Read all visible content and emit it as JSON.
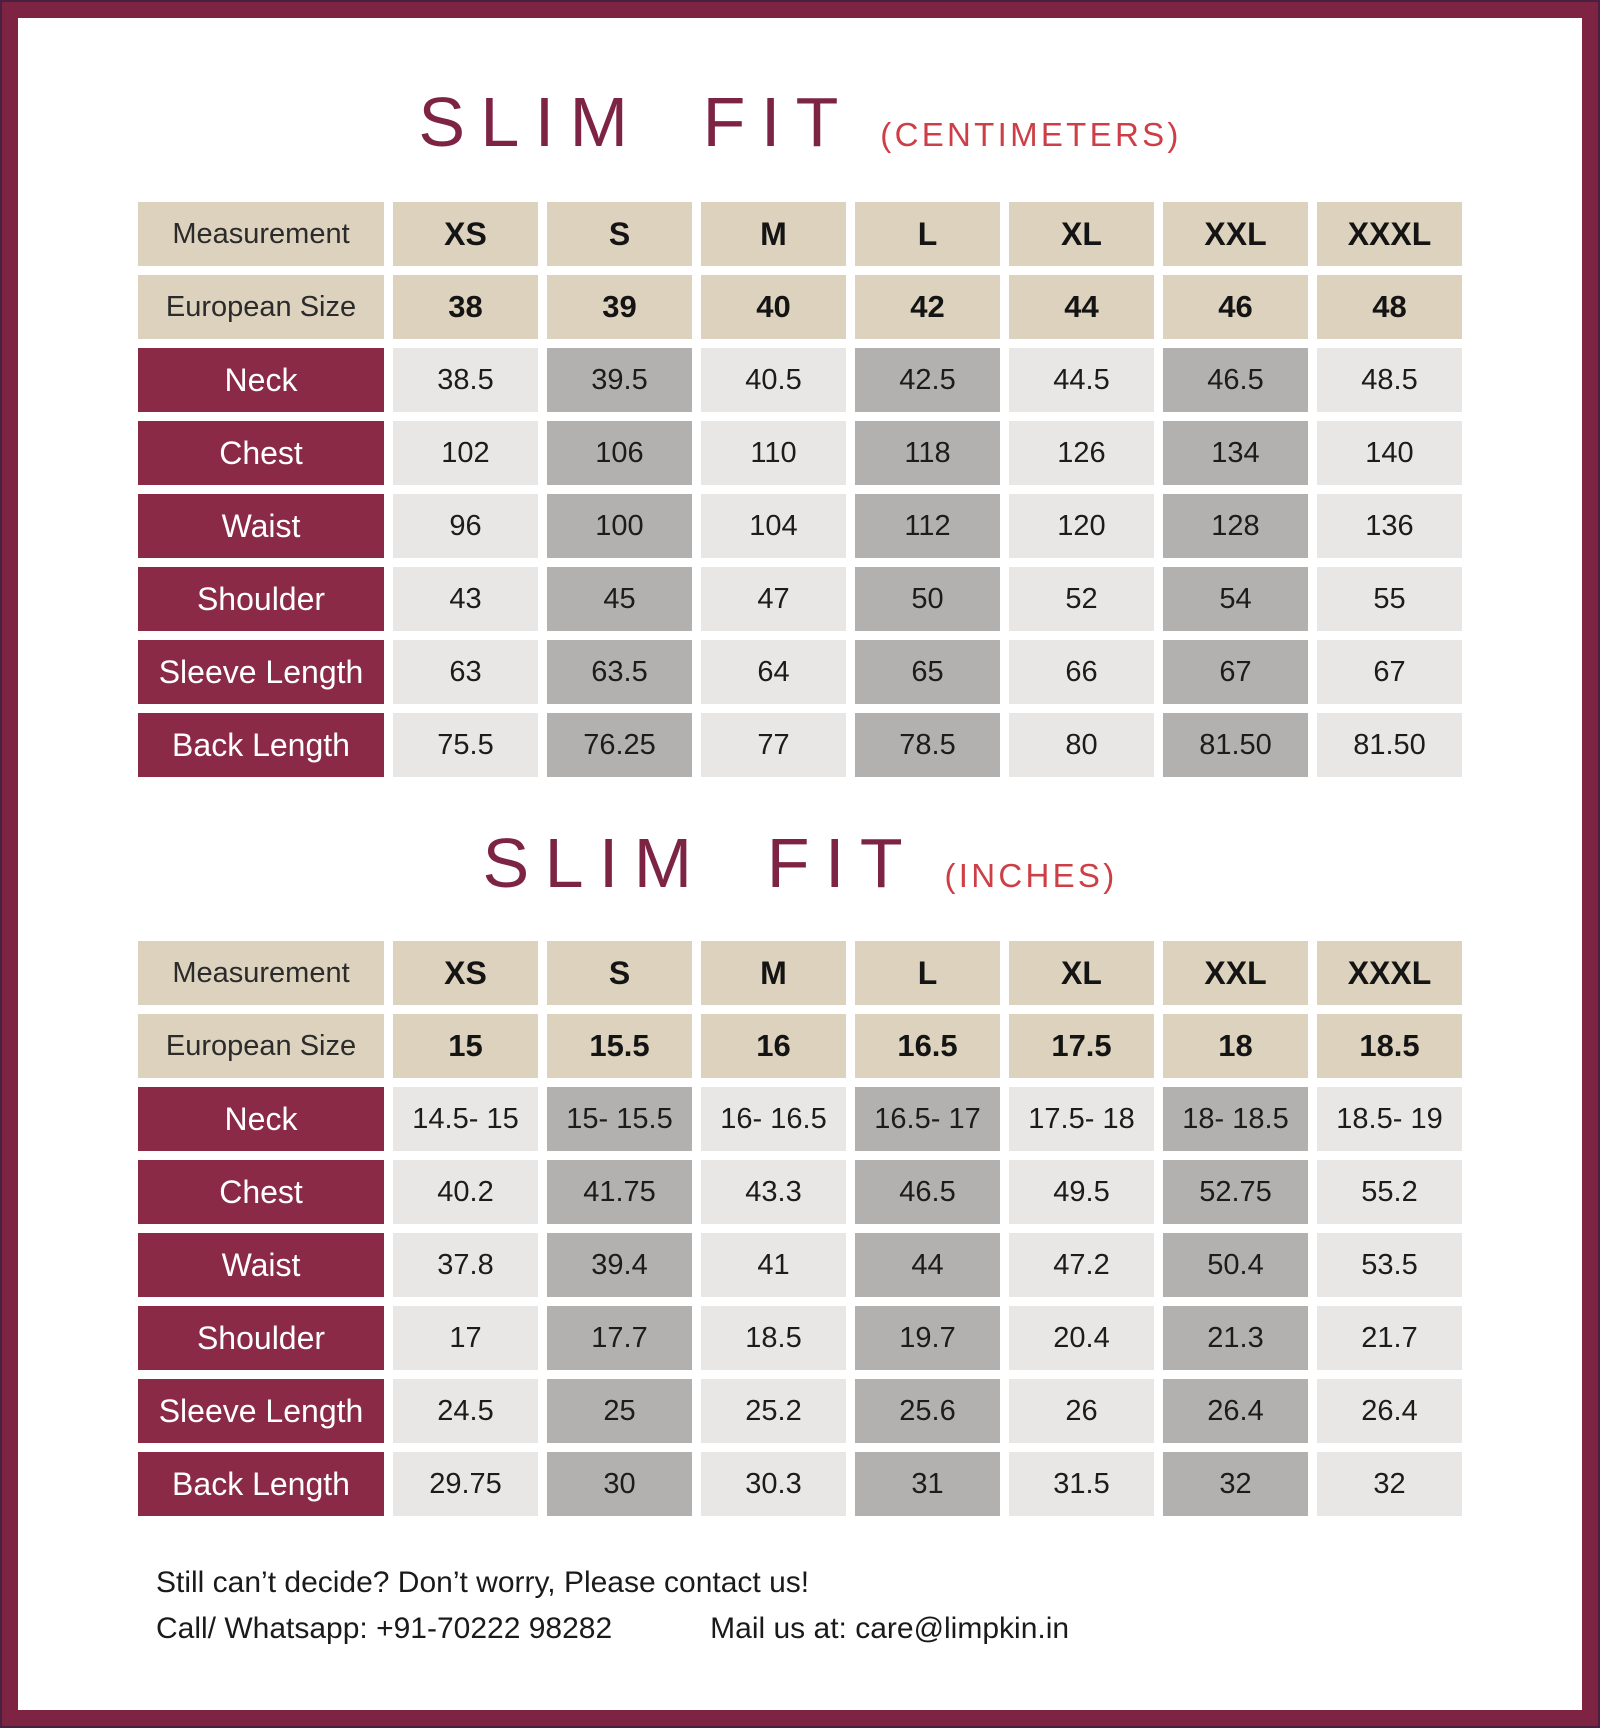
{
  "colors": {
    "frame": "#7d2442",
    "row_label_bg": "#8b2a46",
    "header_bg": "#ddd2bd",
    "cell_light": "#e8e7e6",
    "cell_dark": "#b3b1b0",
    "title_maroon": "#7d2445",
    "unit_red": "#cd3f46"
  },
  "tables": [
    {
      "title": "SLIM FIT",
      "unit": "(CENTIMETERS)",
      "measurement_label": "Measurement",
      "sizes": [
        "XS",
        "S",
        "M",
        "L",
        "XL",
        "XXL",
        "XXXL"
      ],
      "european_label": "European Size",
      "european_values": [
        "38",
        "39",
        "40",
        "42",
        "44",
        "46",
        "48"
      ],
      "rows": [
        {
          "label": "Neck",
          "values": [
            "38.5",
            "39.5",
            "40.5",
            "42.5",
            "44.5",
            "46.5",
            "48.5"
          ]
        },
        {
          "label": "Chest",
          "values": [
            "102",
            "106",
            "110",
            "118",
            "126",
            "134",
            "140"
          ]
        },
        {
          "label": "Waist",
          "values": [
            "96",
            "100",
            "104",
            "112",
            "120",
            "128",
            "136"
          ]
        },
        {
          "label": "Shoulder",
          "values": [
            "43",
            "45",
            "47",
            "50",
            "52",
            "54",
            "55"
          ]
        },
        {
          "label": "Sleeve Length",
          "values": [
            "63",
            "63.5",
            "64",
            "65",
            "66",
            "67",
            "67"
          ]
        },
        {
          "label": "Back Length",
          "values": [
            "75.5",
            "76.25",
            "77",
            "78.5",
            "80",
            "81.50",
            "81.50"
          ]
        }
      ]
    },
    {
      "title": "SLIM FIT",
      "unit": "(INCHES)",
      "measurement_label": "Measurement",
      "sizes": [
        "XS",
        "S",
        "M",
        "L",
        "XL",
        "XXL",
        "XXXL"
      ],
      "european_label": "European Size",
      "european_values": [
        "15",
        "15.5",
        "16",
        "16.5",
        "17.5",
        "18",
        "18.5"
      ],
      "rows": [
        {
          "label": "Neck",
          "values": [
            "14.5- 15",
            "15- 15.5",
            "16- 16.5",
            "16.5- 17",
            "17.5- 18",
            "18- 18.5",
            "18.5- 19"
          ]
        },
        {
          "label": "Chest",
          "values": [
            "40.2",
            "41.75",
            "43.3",
            "46.5",
            "49.5",
            "52.75",
            "55.2"
          ]
        },
        {
          "label": "Waist",
          "values": [
            "37.8",
            "39.4",
            "41",
            "44",
            "47.2",
            "50.4",
            "53.5"
          ]
        },
        {
          "label": "Shoulder",
          "values": [
            "17",
            "17.7",
            "18.5",
            "19.7",
            "20.4",
            "21.3",
            "21.7"
          ]
        },
        {
          "label": "Sleeve Length",
          "values": [
            "24.5",
            "25",
            "25.2",
            "25.6",
            "26",
            "26.4",
            "26.4"
          ]
        },
        {
          "label": "Back Length",
          "values": [
            "29.75",
            "30",
            "30.3",
            "31",
            "31.5",
            "32",
            "32"
          ]
        }
      ]
    }
  ],
  "footer": {
    "message": "Still can’t decide? Don’t worry, Please contact us!",
    "call": "Call/ Whatsapp: +91-70222 98282",
    "mail": "Mail us at: care@limpkin.in"
  }
}
